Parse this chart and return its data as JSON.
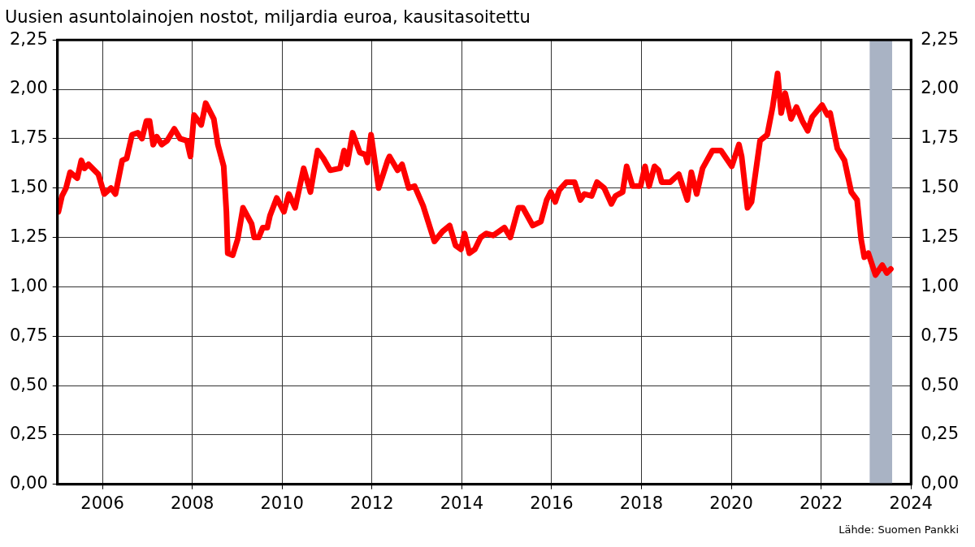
{
  "chart_data": {
    "type": "line",
    "title": "Uusien asuntolainojen nostot, miljardia euroa, kausitasoitettu",
    "annotations": [
      "Lähde: Suomen Pankki"
    ],
    "xlim": [
      2005,
      2024
    ],
    "xticks": [
      2006,
      2008,
      2010,
      2012,
      2014,
      2016,
      2018,
      2020,
      2022,
      2024
    ],
    "ylim": [
      0,
      2.25
    ],
    "yticks": [
      {
        "value": 0,
        "label": "0,00"
      },
      {
        "value": 0.25,
        "label": "0,25"
      },
      {
        "value": 0.5,
        "label": "0,50"
      },
      {
        "value": 0.75,
        "label": "0,75"
      },
      {
        "value": 1,
        "label": "1,00"
      },
      {
        "value": 1.25,
        "label": "1,25"
      },
      {
        "value": 1.5,
        "label": "1,50"
      },
      {
        "value": 1.75,
        "label": "1,75"
      },
      {
        "value": 2,
        "label": "2,00"
      },
      {
        "value": 2.25,
        "label": "2,25"
      }
    ],
    "y2lim": [
      0,
      2.25
    ],
    "y2ticks": [
      {
        "value": 0,
        "label": "0,00"
      },
      {
        "value": 0.25,
        "label": "0,25"
      },
      {
        "value": 0.5,
        "label": "0,50"
      },
      {
        "value": 0.75,
        "label": "0,75"
      },
      {
        "value": 1,
        "label": "1,00"
      },
      {
        "value": 1.25,
        "label": "1,25"
      },
      {
        "value": 1.5,
        "label": "1,50"
      },
      {
        "value": 1.75,
        "label": "1,75"
      },
      {
        "value": 2,
        "label": "2,00"
      },
      {
        "value": 2.25,
        "label": "2,25"
      }
    ],
    "grid": true,
    "legend": false,
    "marker": "none",
    "line_style": "solid",
    "bands": [
      {
        "axis": "x",
        "from": 2023.08,
        "to": 2023.58,
        "color": "#a9b3c4"
      }
    ],
    "series": [
      {
        "color": "#ff0000",
        "x": [
          2005.02,
          2005.1,
          2005.19,
          2005.28,
          2005.44,
          2005.53,
          2005.6,
          2005.69,
          2005.91,
          2006.04,
          2006.19,
          2006.29,
          2006.44,
          2006.54,
          2006.66,
          2006.79,
          2006.88,
          2006.98,
          2007.05,
          2007.13,
          2007.21,
          2007.32,
          2007.44,
          2007.6,
          2007.73,
          2007.88,
          2007.96,
          2008.04,
          2008.2,
          2008.3,
          2008.48,
          2008.57,
          2008.7,
          2008.76,
          2008.79,
          2008.9,
          2009.01,
          2009.13,
          2009.32,
          2009.38,
          2009.48,
          2009.57,
          2009.67,
          2009.73,
          2009.88,
          2010.04,
          2010.15,
          2010.29,
          2010.48,
          2010.63,
          2010.79,
          2010.92,
          2011.07,
          2011.29,
          2011.38,
          2011.45,
          2011.57,
          2011.73,
          2011.85,
          2011.9,
          2011.98,
          2012.15,
          2012.35,
          2012.39,
          2012.57,
          2012.67,
          2012.82,
          2012.95,
          2013.14,
          2013.39,
          2013.57,
          2013.73,
          2013.86,
          2013.98,
          2014.06,
          2014.17,
          2014.29,
          2014.42,
          2014.54,
          2014.7,
          2014.95,
          2015.08,
          2015.26,
          2015.36,
          2015.58,
          2015.76,
          2015.89,
          2015.98,
          2016.08,
          2016.17,
          2016.33,
          2016.51,
          2016.64,
          2016.73,
          2016.89,
          2017.01,
          2017.17,
          2017.33,
          2017.42,
          2017.58,
          2017.67,
          2017.8,
          2017.98,
          2018.08,
          2018.17,
          2018.29,
          2018.38,
          2018.45,
          2018.64,
          2018.83,
          2019.02,
          2019.11,
          2019.23,
          2019.36,
          2019.58,
          2019.77,
          2020.01,
          2020.17,
          2020.23,
          2020.36,
          2020.45,
          2020.64,
          2020.8,
          2020.92,
          2021.03,
          2021.11,
          2021.2,
          2021.33,
          2021.45,
          2021.58,
          2021.7,
          2021.8,
          2022.02,
          2022.14,
          2022.2,
          2022.36,
          2022.52,
          2022.67,
          2022.8,
          2022.89,
          2022.96,
          2023.05,
          2023.21,
          2023.36,
          2023.46,
          2023.55
        ],
        "values": [
          1.38,
          1.46,
          1.5,
          1.58,
          1.55,
          1.64,
          1.6,
          1.62,
          1.57,
          1.47,
          1.5,
          1.47,
          1.64,
          1.65,
          1.77,
          1.78,
          1.75,
          1.84,
          1.84,
          1.72,
          1.76,
          1.72,
          1.74,
          1.8,
          1.75,
          1.74,
          1.66,
          1.87,
          1.82,
          1.93,
          1.85,
          1.72,
          1.61,
          1.38,
          1.17,
          1.16,
          1.24,
          1.4,
          1.32,
          1.25,
          1.25,
          1.3,
          1.3,
          1.36,
          1.45,
          1.38,
          1.47,
          1.4,
          1.6,
          1.48,
          1.69,
          1.65,
          1.59,
          1.6,
          1.69,
          1.62,
          1.78,
          1.68,
          1.67,
          1.63,
          1.77,
          1.5,
          1.64,
          1.66,
          1.59,
          1.62,
          1.5,
          1.51,
          1.41,
          1.23,
          1.28,
          1.31,
          1.21,
          1.19,
          1.27,
          1.17,
          1.19,
          1.25,
          1.27,
          1.26,
          1.3,
          1.25,
          1.4,
          1.4,
          1.31,
          1.33,
          1.44,
          1.48,
          1.43,
          1.49,
          1.53,
          1.53,
          1.44,
          1.47,
          1.46,
          1.53,
          1.5,
          1.42,
          1.46,
          1.48,
          1.61,
          1.51,
          1.51,
          1.61,
          1.51,
          1.61,
          1.59,
          1.53,
          1.53,
          1.57,
          1.44,
          1.58,
          1.47,
          1.6,
          1.69,
          1.69,
          1.61,
          1.72,
          1.66,
          1.4,
          1.43,
          1.74,
          1.77,
          1.91,
          2.08,
          1.88,
          1.98,
          1.85,
          1.91,
          1.84,
          1.79,
          1.86,
          1.92,
          1.87,
          1.88,
          1.7,
          1.64,
          1.48,
          1.44,
          1.24,
          1.15,
          1.17,
          1.06,
          1.11,
          1.07,
          1.09
        ]
      }
    ]
  }
}
